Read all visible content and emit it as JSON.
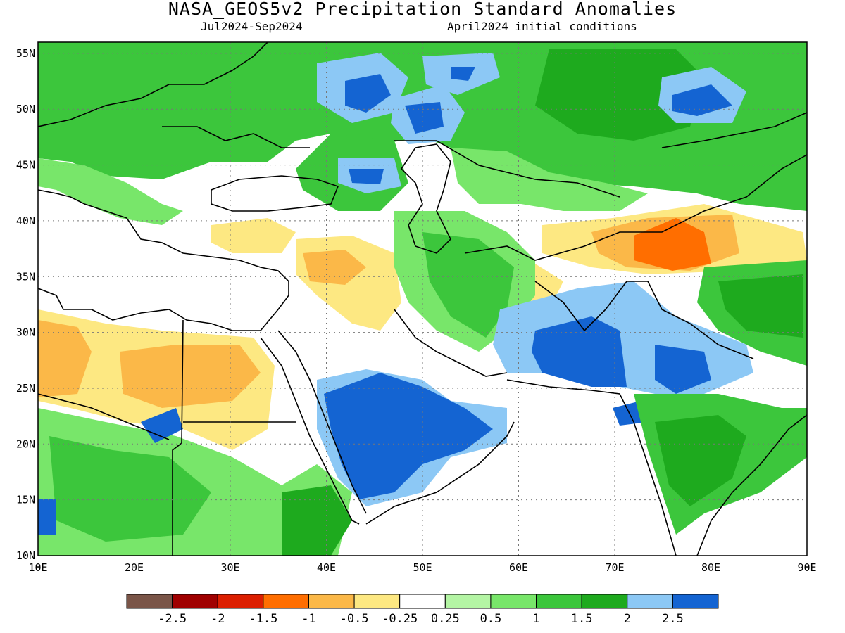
{
  "title": "NASA_GEOS5v2 Precipitation Standard Anomalies",
  "subtitle_left": "Jul2024-Sep2024",
  "subtitle_right": "April2024 initial conditions",
  "map": {
    "lon_range": [
      10,
      90
    ],
    "lat_range": [
      10,
      56
    ],
    "x_ticks": [
      "10E",
      "20E",
      "30E",
      "40E",
      "50E",
      "60E",
      "70E",
      "80E",
      "90E"
    ],
    "y_ticks": [
      "10N",
      "15N",
      "20N",
      "25N",
      "30N",
      "35N",
      "40N",
      "45N",
      "50N",
      "55N"
    ],
    "grid": "dotted"
  },
  "colorbar": {
    "colors": [
      "#7a5548",
      "#a00000",
      "#dc1e00",
      "#ff6e00",
      "#fbb848",
      "#fde882",
      "#ffffff",
      "#b4f5a4",
      "#78e66a",
      "#3cc63c",
      "#1eaa1e",
      "#8cc8f5",
      "#1464d2"
    ],
    "labels": [
      "-2.5",
      "-2",
      "-1.5",
      "-1",
      "-0.5",
      "-0.25",
      "0.25",
      "0.5",
      "1",
      "1.5",
      "2",
      "2.5"
    ]
  },
  "regions": [
    {
      "name": "europe-wet",
      "level": "1.5"
    },
    {
      "name": "russia-east-wet",
      "level": "2"
    },
    {
      "name": "central-asia-wet",
      "level": "1"
    },
    {
      "name": "volga-very-wet",
      "level": "2.5"
    },
    {
      "name": "kazakh-north-very-wet",
      "level": "2.5"
    },
    {
      "name": "mongolia-very-wet",
      "level": "2.5"
    },
    {
      "name": "caspian-north-very-wet",
      "level": "2.5"
    },
    {
      "name": "sahara-dry",
      "level": "-0.5"
    },
    {
      "name": "turkey-dry",
      "level": "-0.5"
    },
    {
      "name": "syria-iraq-dry",
      "level": "-0.5"
    },
    {
      "name": "afghanistan-dry",
      "level": "-0.5"
    },
    {
      "name": "tajik-dry",
      "level": "-1"
    },
    {
      "name": "arabia-south-very-wet",
      "level": "2.5"
    },
    {
      "name": "pakistan-very-wet",
      "level": "2.5"
    },
    {
      "name": "india-north-wet",
      "level": "2"
    },
    {
      "name": "india-south-wet",
      "level": "1.5"
    },
    {
      "name": "sahel-wet",
      "level": "1.5"
    },
    {
      "name": "iran-wet",
      "level": "1"
    },
    {
      "name": "tibet-wet",
      "level": "1.5"
    }
  ]
}
